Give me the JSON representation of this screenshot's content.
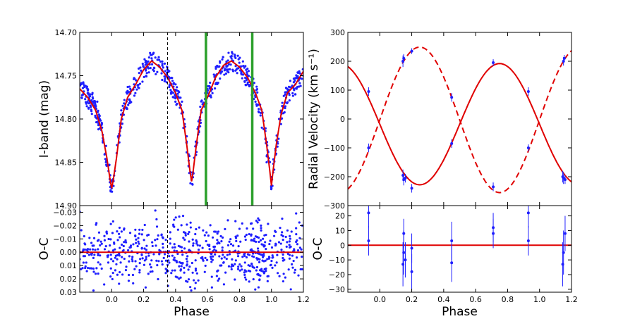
{
  "chart_data": [
    {
      "id": "lc",
      "type": "scatter",
      "ylabel": "I-band (mag)",
      "xlim": [
        -0.2,
        1.2
      ],
      "ylim": [
        14.9,
        14.7
      ],
      "y_inverted": true,
      "yticks": [
        "14.70",
        "14.75",
        "14.80",
        "14.85",
        "14.90"
      ],
      "vlines": [
        {
          "x": 0.35,
          "style": "dashed",
          "color": "#000000"
        },
        {
          "x": 0.59,
          "style": "solid",
          "color": "#2ca02c"
        },
        {
          "x": 0.88,
          "style": "solid",
          "color": "#2ca02c"
        }
      ],
      "series": [
        {
          "kind": "points",
          "color": "#1f1fff",
          "x": [
            -0.12,
            -0.09,
            -0.06,
            -0.04,
            -0.02,
            0.0,
            0.02,
            0.04,
            0.06,
            0.1,
            0.14,
            0.2,
            0.25,
            0.3,
            0.35,
            0.4,
            0.44,
            0.47,
            0.5,
            0.53,
            0.56,
            0.6,
            0.65,
            0.7,
            0.75,
            0.8,
            0.85,
            0.9,
            0.94,
            0.97,
            1.0,
            1.03,
            1.06,
            1.1,
            1.15,
            1.2
          ],
          "y": [
            14.77,
            14.78,
            14.81,
            14.84,
            14.86,
            14.88,
            14.86,
            14.82,
            14.79,
            14.77,
            14.76,
            14.74,
            14.73,
            14.74,
            14.75,
            14.76,
            14.78,
            14.82,
            14.87,
            14.83,
            14.79,
            14.77,
            14.75,
            14.74,
            14.73,
            14.74,
            14.76,
            14.78,
            14.81,
            14.85,
            14.88,
            14.84,
            14.8,
            14.77,
            14.76,
            14.75
          ]
        },
        {
          "kind": "line",
          "color": "#e00000",
          "x": [
            -0.2,
            -0.15,
            -0.1,
            -0.06,
            -0.03,
            -0.01,
            0.0,
            0.01,
            0.03,
            0.06,
            0.1,
            0.15,
            0.2,
            0.25,
            0.3,
            0.35,
            0.4,
            0.44,
            0.47,
            0.49,
            0.5,
            0.51,
            0.53,
            0.56,
            0.6,
            0.65,
            0.7,
            0.75,
            0.8,
            0.85,
            0.9,
            0.94,
            0.97,
            0.99,
            1.0,
            1.01,
            1.03,
            1.06,
            1.1,
            1.15,
            1.2
          ],
          "y": [
            14.765,
            14.775,
            14.79,
            14.815,
            14.845,
            14.87,
            14.88,
            14.87,
            14.845,
            14.8,
            14.775,
            14.76,
            14.743,
            14.733,
            14.74,
            14.752,
            14.77,
            14.79,
            14.83,
            14.86,
            14.872,
            14.86,
            14.83,
            14.79,
            14.775,
            14.752,
            14.738,
            14.733,
            14.74,
            14.752,
            14.77,
            14.79,
            14.83,
            14.86,
            14.877,
            14.86,
            14.83,
            14.795,
            14.77,
            14.76,
            14.745
          ]
        }
      ]
    },
    {
      "id": "lc_res",
      "type": "scatter",
      "xlabel": "Phase",
      "ylabel": "O-C",
      "xlim": [
        -0.2,
        1.2
      ],
      "ylim": [
        0.03,
        -0.035
      ],
      "y_inverted": true,
      "xticks": [
        "0.0",
        "0.2",
        "0.4",
        "0.6",
        "0.8",
        "1.0",
        "1.2"
      ],
      "yticks": [
        "−0.03",
        "−0.02",
        "−0.01",
        "0.00",
        "0.01",
        "0.02",
        "0.03"
      ],
      "series": [
        {
          "kind": "line",
          "color": "#e00000",
          "x": [
            -0.2,
            1.2
          ],
          "y": [
            0.0,
            0.0
          ]
        }
      ]
    },
    {
      "id": "rv",
      "type": "line",
      "ylabel": "Radial Velocity (km s⁻¹)",
      "xlim": [
        -0.2,
        1.2
      ],
      "ylim": [
        -300,
        300
      ],
      "yticks": [
        "−300",
        "−200",
        "−100",
        "0",
        "100",
        "200",
        "300"
      ],
      "series": [
        {
          "kind": "solid-line",
          "color": "#e00000",
          "amplitude": 210,
          "offset": -18,
          "sign": -1
        },
        {
          "kind": "dashed-line",
          "color": "#e00000",
          "amplitude": 252,
          "offset": -3,
          "sign": 1
        },
        {
          "kind": "errorbars",
          "color": "#1f1fff",
          "x": [
            -0.07,
            -0.07,
            0.145,
            0.15,
            0.16,
            0.145,
            0.15,
            0.2,
            0.2,
            0.45,
            0.45,
            0.71,
            0.71,
            0.93,
            0.93,
            1.145,
            1.15,
            1.16,
            1.15,
            1.155
          ],
          "y": [
            95,
            -100,
            -195,
            -210,
            -205,
            200,
            210,
            -240,
            235,
            75,
            -85,
            -235,
            195,
            95,
            -100,
            -200,
            -205,
            -210,
            200,
            210
          ],
          "err": [
            15,
            15,
            20,
            20,
            15,
            20,
            15,
            15,
            10,
            15,
            15,
            15,
            12,
            15,
            12,
            20,
            20,
            15,
            15,
            12
          ]
        }
      ]
    },
    {
      "id": "rv_res",
      "type": "scatter",
      "xlabel": "Phase",
      "ylabel": "O-C",
      "xlim": [
        -0.2,
        1.2
      ],
      "ylim": [
        -32,
        27
      ],
      "xticks": [
        "0.0",
        "0.2",
        "0.4",
        "0.6",
        "0.8",
        "1.0",
        "1.2"
      ],
      "yticks": [
        "−30",
        "−20",
        "−10",
        "0",
        "10",
        "20"
      ],
      "series": [
        {
          "kind": "line",
          "color": "#e00000",
          "x": [
            -0.2,
            1.2
          ],
          "y": [
            0,
            0
          ]
        },
        {
          "kind": "errorbars",
          "color": "#1f1fff",
          "x": [
            -0.07,
            -0.07,
            0.145,
            0.15,
            0.16,
            0.15,
            0.2,
            0.2,
            0.45,
            0.45,
            0.71,
            0.71,
            0.93,
            0.93,
            1.145,
            1.15,
            1.16
          ],
          "y": [
            22,
            3,
            -13,
            -5,
            -10,
            8,
            -18,
            -2,
            3,
            -12,
            12,
            8,
            22,
            3,
            -13,
            -5,
            8
          ],
          "err": [
            10,
            10,
            15,
            15,
            12,
            10,
            12,
            10,
            13,
            13,
            10,
            10,
            10,
            10,
            15,
            15,
            12
          ]
        }
      ]
    }
  ]
}
